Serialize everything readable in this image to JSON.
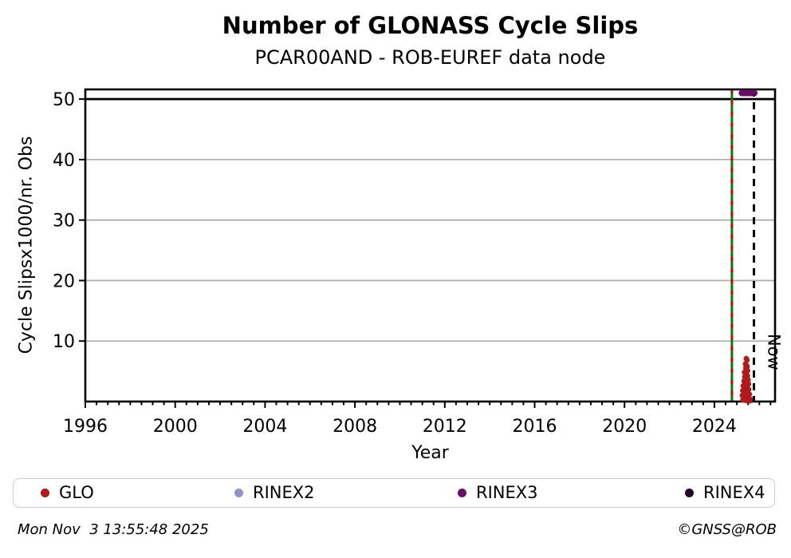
{
  "chart": {
    "title": "Number of GLONASS Cycle Slips",
    "subtitle": "PCAR00AND - ROB-EUREF data node",
    "xlabel": "Year",
    "ylabel": "Cycle Slipsx1000/nr. Obs"
  },
  "chart_data": {
    "type": "scatter",
    "title": "Number of GLONASS Cycle Slips",
    "subtitle": "PCAR00AND - ROB-EUREF data node",
    "xlabel": "Year",
    "ylabel": "Cycle Slipsx1000/nr. Obs",
    "axes": {
      "x_range": [
        1996,
        2026.7
      ],
      "x_major_ticks": [
        1996,
        2000,
        2004,
        2008,
        2012,
        2016,
        2020,
        2024
      ],
      "x_minor_step": 0.5,
      "y_range": [
        0,
        51.6
      ],
      "y_major_ticks": [
        10,
        20,
        30,
        40,
        50
      ],
      "grid": true,
      "grid_color": "#b0b0b0"
    },
    "threshold_line": {
      "y": 50,
      "color": "#000000"
    },
    "event_line": {
      "x": 2024.78,
      "line_color": "#008000",
      "dash_color": "#dd0000"
    },
    "now_line": {
      "x": 2025.76,
      "label": "Now",
      "color": "#000000"
    },
    "legend_position": "bottom",
    "series": [
      {
        "name": "GLO",
        "color": "#b01a1a",
        "marker_radius": 3.4,
        "points": [
          [
            2025.42,
            7.1
          ],
          [
            2025.45,
            6.85
          ],
          [
            2025.38,
            6.2
          ],
          [
            2025.42,
            6.0
          ],
          [
            2025.46,
            5.8
          ],
          [
            2025.4,
            5.55
          ],
          [
            2025.44,
            5.3
          ],
          [
            2025.48,
            5.1
          ],
          [
            2025.34,
            4.85
          ],
          [
            2025.38,
            4.6
          ],
          [
            2025.43,
            4.45
          ],
          [
            2025.47,
            4.25
          ],
          [
            2025.35,
            4.05
          ],
          [
            2025.4,
            3.9
          ],
          [
            2025.45,
            3.75
          ],
          [
            2025.5,
            3.6
          ],
          [
            2025.32,
            3.4
          ],
          [
            2025.37,
            3.25
          ],
          [
            2025.42,
            3.1
          ],
          [
            2025.47,
            3.0
          ],
          [
            2025.52,
            2.9
          ],
          [
            2025.28,
            2.6
          ],
          [
            2025.33,
            2.45
          ],
          [
            2025.38,
            2.3
          ],
          [
            2025.43,
            2.2
          ],
          [
            2025.48,
            2.1
          ],
          [
            2025.53,
            2.0
          ],
          [
            2025.26,
            1.8
          ],
          [
            2025.31,
            1.7
          ],
          [
            2025.36,
            1.6
          ],
          [
            2025.41,
            1.5
          ],
          [
            2025.46,
            1.4
          ],
          [
            2025.51,
            1.3
          ],
          [
            2025.56,
            1.2
          ],
          [
            2025.24,
            1.0
          ],
          [
            2025.29,
            0.9
          ],
          [
            2025.35,
            0.8
          ],
          [
            2025.4,
            0.7
          ],
          [
            2025.45,
            0.6
          ],
          [
            2025.5,
            0.5
          ],
          [
            2025.55,
            0.45
          ],
          [
            2025.6,
            0.4
          ],
          [
            2025.27,
            0.3
          ],
          [
            2025.33,
            0.25
          ],
          [
            2025.39,
            0.2
          ],
          [
            2025.45,
            0.15
          ],
          [
            2025.51,
            0.1
          ],
          [
            2025.57,
            0.1
          ]
        ]
      },
      {
        "name": "RINEX2",
        "color": "#9292cf",
        "marker_radius": 4,
        "points": []
      },
      {
        "name": "RINEX3",
        "color": "#6a0c6a",
        "marker_radius": 4,
        "points": [
          [
            2025.22,
            51
          ],
          [
            2025.26,
            51
          ],
          [
            2025.3,
            51
          ],
          [
            2025.34,
            51
          ],
          [
            2025.38,
            51
          ],
          [
            2025.42,
            51
          ],
          [
            2025.46,
            51
          ],
          [
            2025.5,
            51
          ],
          [
            2025.54,
            51
          ],
          [
            2025.58,
            51
          ],
          [
            2025.62,
            51
          ],
          [
            2025.66,
            51
          ],
          [
            2025.7,
            51
          ],
          [
            2025.74,
            51
          ],
          [
            2025.78,
            51
          ]
        ]
      },
      {
        "name": "RINEX4",
        "color": "#200a24",
        "marker_radius": 4,
        "points": []
      }
    ]
  },
  "legend": {
    "items": [
      {
        "label": "GLO",
        "color": "#b01a1a"
      },
      {
        "label": "RINEX2",
        "color": "#9292cf"
      },
      {
        "label": "RINEX3",
        "color": "#6a0c6a"
      },
      {
        "label": "RINEX4",
        "color": "#200a24"
      }
    ]
  },
  "footer": {
    "timestamp": "Mon Nov  3 13:55:48 2025",
    "copyright": "©GNSS@ROB"
  }
}
